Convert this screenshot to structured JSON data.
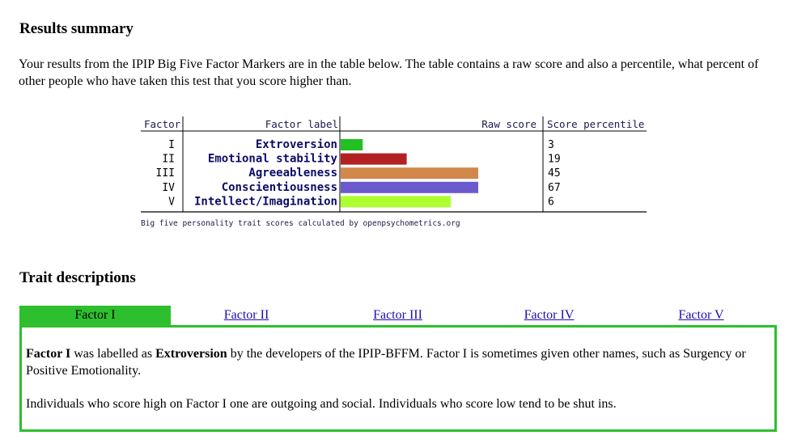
{
  "results": {
    "heading": "Results summary",
    "intro": "Your results from the IPIP Big Five Factor Markers are in the table below. The table contains a raw score and also a percentile, what percent of other people who have taken this test that you score higher than."
  },
  "chart_data": {
    "type": "bar",
    "headers": {
      "factor": "Factor",
      "label": "Factor label",
      "raw": "Raw score",
      "percentile": "Score percentile"
    },
    "categories": [
      "Extroversion",
      "Emotional stability",
      "Agreeableness",
      "Conscientiousness",
      "Intellect/Imagination"
    ],
    "factors": [
      "I",
      "II",
      "III",
      "IV",
      "V"
    ],
    "raw_scores": [
      8,
      24,
      50,
      50,
      40
    ],
    "percentiles": [
      "3",
      "19",
      "45",
      "67",
      "6"
    ],
    "colors": [
      "#22c022",
      "#b22222",
      "#d2884a",
      "#6a5acd",
      "#adff2f"
    ],
    "xlim": [
      0,
      50
    ],
    "footnote": "Big five personality trait scores calculated by openpsychometrics.org"
  },
  "traits": {
    "heading": "Trait descriptions",
    "tabs": [
      "Factor I",
      "Factor II",
      "Factor III",
      "Factor IV",
      "Factor V"
    ],
    "active_tab": 0,
    "panel": {
      "p1_factor": "Factor I",
      "p1_mid": " was labelled as ",
      "p1_label": "Extroversion",
      "p1_rest": " by the developers of the IPIP-BFFM. Factor I is sometimes given other names, such as Surgency or Positive Emotionality.",
      "p2": "Individuals who score high on Factor I one are outgoing and social. Individuals who score low tend to be shut ins."
    }
  }
}
